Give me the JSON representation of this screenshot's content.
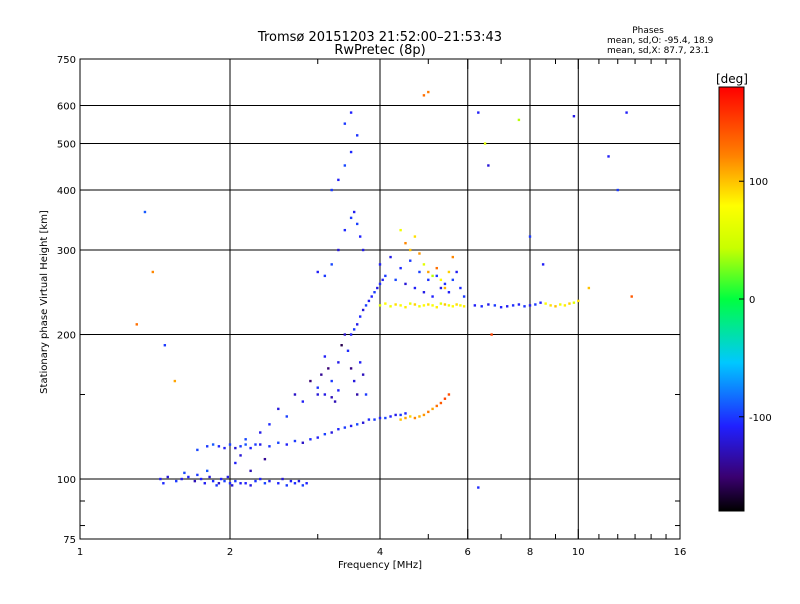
{
  "chart_data": {
    "type": "scatter",
    "title": "Tromsø 20151203 21:52:00–21:53:43",
    "subtitle": "RwPretec (8p)",
    "xlabel": "Frequency [MHz]",
    "ylabel": "Stationary phase Virtual Height [km]",
    "x_scale": "log",
    "y_scale": "log",
    "xlim": [
      1,
      16
    ],
    "ylim": [
      75,
      750
    ],
    "x_ticks": [
      1,
      2,
      4,
      6,
      8,
      10,
      16
    ],
    "x_minor_ticks": [
      3,
      5,
      7,
      9,
      11,
      12,
      13,
      14,
      15
    ],
    "y_ticks": [
      75,
      100,
      200,
      300,
      400,
      500,
      600,
      750
    ],
    "y_minor_ticks": [
      80,
      90,
      150
    ],
    "grid": true,
    "grid_x": [
      2,
      4,
      6,
      8,
      10
    ],
    "grid_y": [
      100,
      200,
      300,
      400,
      500,
      600
    ],
    "info": {
      "heading": "Phases",
      "line1": "mean, sd,O: -95.4, 18.9",
      "line2": "mean, sd,X: 87.7, 23.1"
    },
    "colorbar": {
      "label": "[deg]",
      "min": -180,
      "max": 180,
      "ticks": [
        100,
        0,
        -100
      ]
    },
    "point_color": "phase (deg)",
    "series": [
      {
        "x": [
          1.45,
          1.47,
          1.5,
          1.56,
          1.6,
          1.62,
          1.65,
          1.7,
          1.72,
          1.75,
          1.78,
          1.8,
          1.82,
          1.85,
          1.88,
          1.9,
          1.92,
          1.95,
          1.98,
          2.0,
          2.02,
          2.05,
          2.1,
          2.15,
          2.2,
          2.25,
          2.3,
          2.35,
          2.4,
          2.5,
          2.55,
          2.6,
          2.65,
          2.7,
          2.75,
          2.8,
          2.85
        ],
        "y": [
          100,
          98,
          101,
          99,
          100,
          103,
          101,
          99,
          102,
          100,
          98,
          104,
          101,
          99,
          97,
          98,
          100,
          99,
          101,
          98,
          97,
          99,
          98,
          98,
          97,
          99,
          100,
          98,
          99,
          98,
          100,
          97,
          99,
          98,
          99,
          97,
          98
        ],
        "phase": [
          -110,
          -105,
          -120,
          -100,
          -115,
          -95,
          -110,
          -130,
          -100,
          -108,
          -112,
          -90,
          -118,
          -104,
          -100,
          -125,
          -110,
          -98,
          -115,
          -105,
          -120,
          -100,
          -112,
          -108,
          -118,
          -102,
          -110,
          -96,
          -114,
          -106,
          -120,
          -100,
          -110,
          -104,
          -116,
          -98,
          -108
        ]
      },
      {
        "x": [
          1.72,
          1.8,
          1.85,
          1.9,
          1.95,
          2.0,
          2.05,
          2.1,
          2.15,
          2.2,
          2.3,
          2.4,
          2.5,
          2.6,
          2.7,
          2.8,
          2.9,
          3.0,
          3.1,
          3.2,
          3.3,
          3.4,
          3.5,
          3.6,
          3.7,
          3.8,
          3.9,
          4.0,
          4.1,
          4.2,
          4.3,
          4.4,
          4.5
        ],
        "y": [
          115,
          117,
          118,
          117,
          116,
          118,
          116,
          117,
          118,
          116,
          118,
          117,
          119,
          118,
          120,
          119,
          121,
          122,
          124,
          125,
          127,
          128,
          129,
          130,
          131,
          133,
          133,
          134,
          134,
          135,
          136,
          136,
          137
        ],
        "phase": [
          -95,
          -100,
          -90,
          -105,
          -110,
          -98,
          -120,
          -100,
          -92,
          -108,
          -115,
          -102,
          -96,
          -110,
          -100,
          -125,
          -104,
          -110,
          -98,
          -118,
          -106,
          -100,
          -112,
          -95,
          -120,
          -104,
          -100,
          -110,
          -96,
          -108,
          -114,
          -100,
          -106
        ]
      },
      {
        "x": [
          4.4,
          4.5,
          4.6,
          4.7,
          4.8,
          4.9,
          5.0,
          5.1,
          5.2,
          5.3,
          5.4,
          5.5
        ],
        "y": [
          133,
          134,
          135,
          134,
          135,
          136,
          138,
          140,
          142,
          144,
          147,
          150
        ],
        "phase": [
          100,
          110,
          95,
          120,
          105,
          115,
          125,
          110,
          130,
          140,
          150,
          145
        ]
      },
      {
        "x": [
          2.05,
          2.1,
          2.15,
          2.2,
          2.25,
          2.3,
          2.35,
          2.4,
          2.5,
          2.6,
          2.7,
          2.8,
          2.9,
          3.0,
          3.1,
          3.2,
          3.3
        ],
        "y": [
          108,
          112,
          121,
          104,
          118,
          125,
          110,
          130,
          140,
          135,
          150,
          145,
          160,
          155,
          150,
          148,
          153
        ],
        "phase": [
          -110,
          -120,
          -95,
          -130,
          -100,
          -115,
          -140,
          -105,
          -118,
          -98,
          -125,
          -110,
          -150,
          -102,
          -116,
          -130,
          -108
        ]
      },
      {
        "x": [
          3.0,
          3.05,
          3.1,
          3.15,
          3.2,
          3.25,
          3.3,
          3.35,
          3.4,
          3.45,
          3.5,
          3.55,
          3.6,
          3.65,
          3.7,
          3.75
        ],
        "y": [
          150,
          165,
          180,
          170,
          160,
          145,
          175,
          190,
          200,
          185,
          170,
          160,
          150,
          175,
          165,
          150
        ],
        "phase": [
          -120,
          -140,
          -110,
          -150,
          -100,
          -130,
          -115,
          -160,
          -125,
          -105,
          -145,
          -118,
          -135,
          -110,
          -128,
          -100
        ]
      },
      {
        "x": [
          3.5,
          3.55,
          3.6,
          3.65,
          3.7,
          3.75,
          3.8,
          3.85,
          3.9,
          3.95,
          4.0,
          4.05
        ],
        "y": [
          200,
          205,
          210,
          218,
          225,
          230,
          235,
          240,
          245,
          250,
          255,
          260
        ],
        "phase": [
          -110,
          -100,
          -115,
          -105,
          -120,
          -98,
          -112,
          -108,
          -100,
          -116,
          -104,
          -110
        ]
      },
      {
        "x": [
          3.0,
          3.1,
          3.2,
          3.3,
          3.4,
          3.5,
          3.55,
          3.6,
          3.65,
          3.7,
          3.2,
          3.3,
          3.4,
          3.5,
          3.6,
          3.4,
          3.5
        ],
        "y": [
          270,
          265,
          280,
          300,
          330,
          350,
          360,
          340,
          320,
          300,
          400,
          420,
          450,
          480,
          520,
          550,
          580
        ],
        "phase": [
          -110,
          -100,
          -95,
          -120,
          -105,
          -100,
          -112,
          -98,
          -108,
          -115,
          -100,
          -110,
          -95,
          -105,
          -102,
          -100,
          -108
        ]
      },
      {
        "x": [
          4.0,
          4.1,
          4.2,
          4.3,
          4.4,
          4.5,
          4.6,
          4.7,
          4.8,
          4.9,
          5.0,
          5.1,
          5.2,
          5.3,
          5.4,
          5.5,
          5.6,
          5.7,
          5.8,
          5.9
        ],
        "y": [
          230,
          232,
          229,
          231,
          230,
          228,
          232,
          231,
          229,
          230,
          231,
          230,
          228,
          232,
          231,
          230,
          229,
          231,
          230,
          229
        ],
        "phase": [
          60,
          80,
          70,
          90,
          75,
          85,
          65,
          95,
          70,
          80,
          90,
          75,
          85,
          60,
          100,
          70,
          80,
          90,
          75,
          85
        ]
      },
      {
        "x": [
          4.0,
          4.1,
          4.2,
          4.3,
          4.4,
          4.5,
          4.6,
          4.7,
          4.8,
          4.9,
          5.0,
          5.1,
          5.2,
          5.3,
          5.4,
          5.5,
          5.6,
          5.7,
          5.8,
          5.9
        ],
        "y": [
          280,
          265,
          290,
          260,
          275,
          255,
          285,
          250,
          270,
          245,
          260,
          240,
          265,
          250,
          255,
          245,
          260,
          270,
          250,
          240
        ],
        "phase": [
          -110,
          -100,
          -115,
          -95,
          -105,
          -120,
          -100,
          -110,
          -98,
          -115,
          -102,
          -108,
          -100,
          -116,
          -104,
          -110,
          -96,
          -112,
          -105,
          -100
        ]
      },
      {
        "x": [
          4.5,
          4.6,
          4.7,
          4.8,
          4.9,
          5.0,
          5.1,
          5.2,
          5.3,
          5.4,
          5.5,
          5.6,
          4.4,
          4.9,
          5.0
        ],
        "y": [
          310,
          300,
          320,
          295,
          280,
          270,
          265,
          275,
          260,
          250,
          270,
          290,
          330,
          630,
          640
        ],
        "phase": [
          120,
          100,
          90,
          115,
          60,
          110,
          40,
          130,
          80,
          105,
          95,
          120,
          70,
          130,
          125
        ]
      },
      {
        "x": [
          6.2,
          6.4,
          6.6,
          6.8,
          7.0,
          7.2,
          7.4,
          7.6,
          7.8,
          8.0,
          8.2,
          8.4,
          8.6,
          8.8,
          9.0,
          9.2,
          9.4,
          9.6,
          9.8,
          10.0
        ],
        "y": [
          230,
          229,
          231,
          230,
          228,
          229,
          230,
          231,
          229,
          230,
          231,
          233,
          232,
          230,
          229,
          231,
          230,
          232,
          233,
          235
        ],
        "phase": [
          -110,
          -105,
          -115,
          -100,
          -108,
          -112,
          -104,
          -110,
          -102,
          -115,
          -100,
          -108,
          80,
          90,
          100,
          70,
          85,
          95,
          60,
          90
        ]
      },
      {
        "x": [
          1.3,
          1.35,
          1.4,
          1.48,
          1.55,
          6.3,
          6.5,
          6.6,
          7.6,
          8.0,
          8.5,
          9.8,
          10.5,
          11.5,
          12.0,
          12.5,
          12.8,
          6.7,
          6.3
        ],
        "y": [
          210,
          360,
          270,
          190,
          160,
          580,
          500,
          450,
          560,
          320,
          280,
          570,
          250,
          470,
          400,
          580,
          240,
          200,
          96
        ],
        "phase": [
          130,
          -90,
          120,
          -100,
          110,
          -110,
          60,
          -120,
          40,
          -100,
          -110,
          -115,
          100,
          -110,
          -100,
          -110,
          140,
          150,
          -105
        ]
      }
    ]
  }
}
